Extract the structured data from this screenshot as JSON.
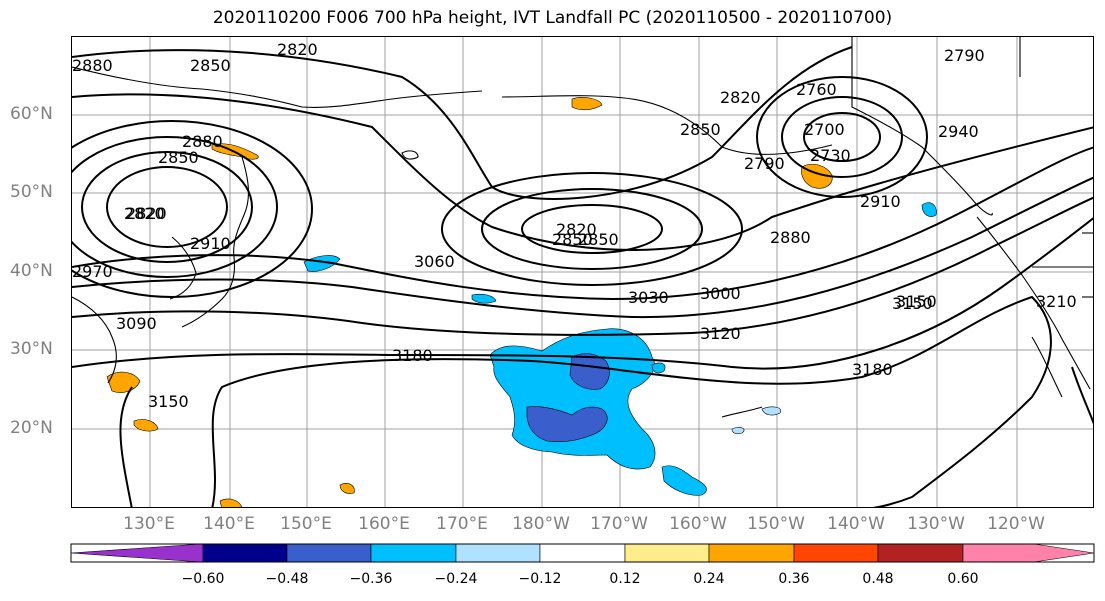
{
  "title": "2020110200 F006 700 hPa height, IVT Landfall PC (2020110500 - 2020110700)",
  "latitude_labels": [
    "60°N",
    "50°N",
    "40°N",
    "30°N",
    "20°N"
  ],
  "longitude_labels": [
    "130°E",
    "140°E",
    "150°E",
    "160°E",
    "170°E",
    "180°W",
    "170°W",
    "160°W",
    "150°W",
    "140°W",
    "130°W",
    "120°W"
  ],
  "contour_labels": [
    "2880",
    "2850",
    "2820",
    "2790",
    "2850",
    "2820",
    "2880",
    "2850",
    "2820",
    "2910",
    "2970",
    "3090",
    "3060",
    "3030",
    "3000",
    "3120",
    "3180",
    "3150",
    "3150",
    "2820",
    "2850",
    "2820",
    "2850",
    "2760",
    "2790",
    "2700",
    "2730",
    "2910",
    "2880",
    "2940",
    "3150",
    "3180",
    "3210"
  ],
  "colorbar": {
    "colors": [
      "#9932cc",
      "#00008b",
      "#3a5fcd",
      "#00bfff",
      "#b0e2ff",
      "#ffffff",
      "#ffec8b",
      "#ffa500",
      "#ff4500",
      "#b22222",
      "#ff82ab"
    ],
    "tick_labels": [
      "−0.60",
      "−0.48",
      "−0.36",
      "−0.24",
      "−0.12",
      "0.12",
      "0.24",
      "0.36",
      "0.48",
      "0.60"
    ]
  },
  "chart_data": {
    "type": "contour-map",
    "title": "2020110200 F006 700 hPa height, IVT Landfall PC (2020110500 - 2020110700)",
    "variables": [
      "700 hPa height (m)",
      "IVT Landfall PC"
    ],
    "lon_range": [
      "120°E",
      "125°W"
    ],
    "lat_range": [
      "10°N",
      "70°N"
    ],
    "height_contour_levels": [
      2700,
      2730,
      2760,
      2790,
      2820,
      2850,
      2880,
      2910,
      2940,
      2970,
      3000,
      3030,
      3060,
      3090,
      3120,
      3150,
      3180,
      3210
    ],
    "shading_levels": [
      -0.6,
      -0.48,
      -0.36,
      -0.24,
      -0.12,
      0.12,
      0.24,
      0.36,
      0.48,
      0.6
    ],
    "features": [
      {
        "type": "low",
        "location": "Kamchatka / NE Siberia",
        "min_contour": 2820
      },
      {
        "type": "low",
        "location": "central North Pacific ~170°E-180°",
        "min_contour": 2820
      },
      {
        "type": "low",
        "location": "Gulf of Alaska",
        "min_contour": 2700
      },
      {
        "type": "high",
        "location": "subtropical North Pacific",
        "max_contour": 3180
      },
      {
        "type": "negative_PC_region",
        "location": "subtropics near 180°, 20-30°N",
        "min_value": -0.48
      }
    ],
    "grid": true
  }
}
